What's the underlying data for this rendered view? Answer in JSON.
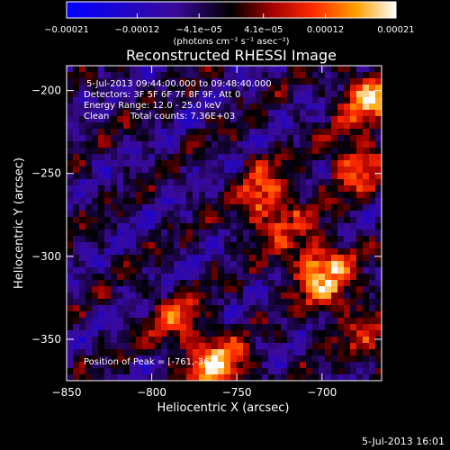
{
  "chart_data": {
    "type": "heatmap",
    "title": "Reconstructed RHESSI Image",
    "xlabel": "Heliocentric X (arcsec)",
    "ylabel": "Heliocentric Y (arcsec)",
    "xlim": [
      -850,
      -665
    ],
    "ylim": [
      -375,
      -185
    ],
    "x_ticks": [
      -850,
      -800,
      -750,
      -700
    ],
    "y_ticks": [
      -200,
      -250,
      -300,
      -350
    ],
    "x_tick_labels": [
      "−850",
      "−800",
      "−750",
      "−700"
    ],
    "y_tick_labels": [
      "−200",
      "−250",
      "−300",
      "−350"
    ],
    "colorbar": {
      "range": [
        -0.00021,
        0.00021
      ],
      "ticks": [
        -0.00021,
        -0.00012,
        -4.1e-05,
        4.1e-05,
        0.00012,
        0.00021
      ],
      "tick_labels": [
        "−0.00021",
        "−0.00012",
        "−4.1e−05",
        "4.1e−05",
        "0.00012",
        "0.00021"
      ],
      "unit_label": "(photons cm⁻² s⁻¹ asec⁻²)",
      "colors": [
        "#0000ff",
        "#000000",
        "#ff0000",
        "#ffa500",
        "#ffffff"
      ]
    },
    "annotations": {
      "time_range": "5-Jul-2013 09:44:00.000 to 09:48:40.000",
      "detectors": "Detectors: 3F 5F 6F 7F 8F 9F, Att 0",
      "energy_range": "Energy Range: 12.0 - 25.0 keV",
      "clean": "Clean",
      "total_counts": "Total counts: 7.36E+03",
      "peak": "Position of Peak = [-761,-367]"
    },
    "bright_sources": [
      {
        "x": -761,
        "y": -367,
        "intensity": 0.00021
      },
      {
        "x": -672,
        "y": -205,
        "intensity": 0.00019
      },
      {
        "x": -700,
        "y": -310,
        "intensity": 0.00014
      },
      {
        "x": -680,
        "y": -245,
        "intensity": 0.00015
      },
      {
        "x": -785,
        "y": -340,
        "intensity": 0.00012
      },
      {
        "x": -735,
        "y": -270,
        "intensity": 0.0001
      }
    ]
  },
  "footer": {
    "date": "5-Jul-2013 16:01"
  }
}
